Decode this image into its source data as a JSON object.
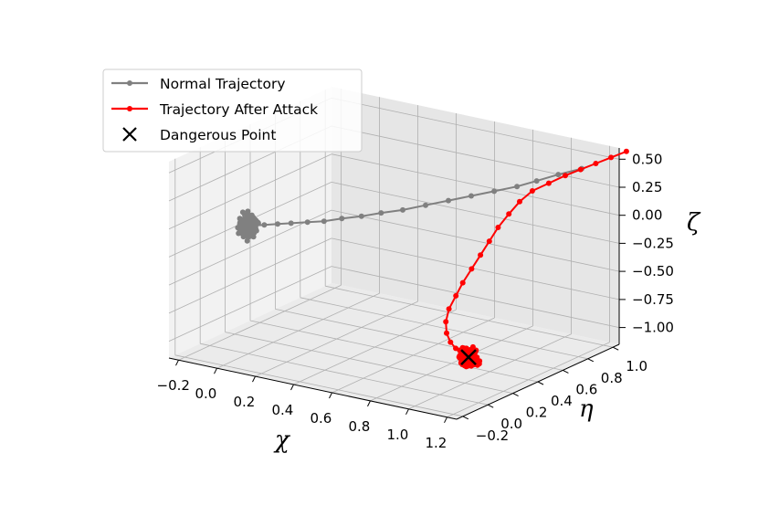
{
  "chart_data": {
    "type": "scatter",
    "projection": "3d",
    "title": "",
    "axes": {
      "x": {
        "label": "χ",
        "ticks": [
          "−0.2",
          "0.0",
          "0.2",
          "0.4",
          "0.6",
          "0.8",
          "1.0",
          "1.2"
        ],
        "range": [
          -0.25,
          1.25
        ]
      },
      "y": {
        "label": "η",
        "ticks": [
          "−0.2",
          "0.0",
          "0.2",
          "0.4",
          "0.6",
          "0.8",
          "1.0"
        ],
        "range": [
          -0.25,
          1.05
        ]
      },
      "z": {
        "label": "ζ",
        "ticks": [
          "0.50",
          "0.25",
          "0.00",
          "−0.25",
          "−0.50",
          "−0.75",
          "−1.00"
        ],
        "range": [
          -1.15,
          0.6
        ]
      }
    },
    "grid": true,
    "legend_position": "top-left",
    "colors": {
      "normal": "#808080",
      "attack": "#ff0000",
      "danger": "#000000"
    },
    "series": [
      {
        "name": "Normal Trajectory",
        "style": "line-with-dots",
        "color": "#808080",
        "path": [
          [
            1.12,
            0.95,
            0.42
          ],
          [
            1.03,
            0.9,
            0.36
          ],
          [
            0.95,
            0.85,
            0.3
          ],
          [
            0.88,
            0.8,
            0.25
          ],
          [
            0.8,
            0.74,
            0.21
          ],
          [
            0.72,
            0.68,
            0.17
          ],
          [
            0.64,
            0.62,
            0.13
          ],
          [
            0.56,
            0.56,
            0.09
          ],
          [
            0.48,
            0.5,
            0.05
          ],
          [
            0.4,
            0.45,
            0.02
          ],
          [
            0.33,
            0.4,
            -0.01
          ],
          [
            0.26,
            0.35,
            -0.03
          ],
          [
            0.2,
            0.3,
            -0.05
          ],
          [
            0.14,
            0.26,
            -0.06
          ],
          [
            0.08,
            0.22,
            -0.07
          ],
          [
            0.03,
            0.19,
            -0.08
          ],
          [
            -0.02,
            0.16,
            -0.09
          ],
          [
            -0.06,
            0.14,
            -0.1
          ]
        ],
        "cluster": {
          "center": [
            -0.08,
            0.12,
            -0.1
          ],
          "spread": [
            0.05,
            0.05,
            0.12
          ],
          "count": 300
        }
      },
      {
        "name": "Trajectory After Attack",
        "style": "line-with-dots",
        "color": "#ff0000",
        "path": [
          [
            1.32,
            1.0,
            0.62
          ],
          [
            1.26,
            0.97,
            0.56
          ],
          [
            1.2,
            0.94,
            0.5
          ],
          [
            1.14,
            0.91,
            0.44
          ],
          [
            1.08,
            0.88,
            0.38
          ],
          [
            1.02,
            0.84,
            0.31
          ],
          [
            0.96,
            0.8,
            0.24
          ],
          [
            0.92,
            0.76,
            0.15
          ],
          [
            0.89,
            0.72,
            0.05
          ],
          [
            0.86,
            0.68,
            -0.06
          ],
          [
            0.84,
            0.64,
            -0.17
          ],
          [
            0.82,
            0.6,
            -0.28
          ],
          [
            0.8,
            0.56,
            -0.39
          ],
          [
            0.78,
            0.52,
            -0.5
          ],
          [
            0.77,
            0.48,
            -0.6
          ],
          [
            0.76,
            0.44,
            -0.7
          ],
          [
            0.77,
            0.4,
            -0.79
          ],
          [
            0.8,
            0.36,
            -0.86
          ],
          [
            0.84,
            0.33,
            -0.91
          ],
          [
            0.88,
            0.31,
            -0.94
          ]
        ],
        "cluster": {
          "center": [
            0.96,
            0.29,
            -0.98
          ],
          "spread": [
            0.05,
            0.05,
            0.1
          ],
          "count": 300
        }
      },
      {
        "name": "Dangerous Point",
        "style": "marker-x",
        "color": "#000000",
        "points": [
          [
            0.96,
            0.29,
            -0.98
          ]
        ]
      }
    ]
  }
}
